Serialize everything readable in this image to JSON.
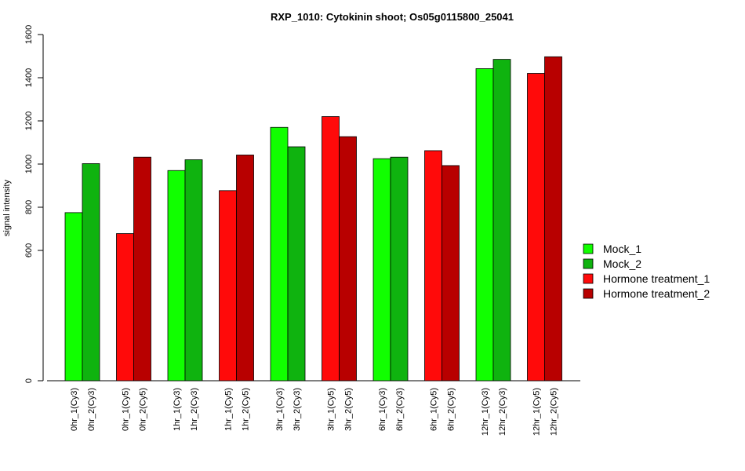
{
  "chart_data": {
    "type": "bar",
    "title": "RXP_1010: Cytokinin shoot; Os05g0115800_25041",
    "ylabel": "signal intensity",
    "xlabel": "",
    "yticks": [
      0,
      600,
      800,
      1000,
      1200,
      1400,
      1600
    ],
    "ylim": [
      0,
      1600
    ],
    "y_scale_note": "broken axis",
    "categories": [
      "0hr_1(Cy3)",
      "0hr_2(Cy3)",
      "0hr_1(Cy5)",
      "0hr_2(Cy5)",
      "1hr_1(Cy3)",
      "1hr_2(Cy3)",
      "1hr_1(Cy5)",
      "1hr_2(Cy5)",
      "3hr_1(Cy3)",
      "3hr_2(Cy3)",
      "3hr_1(Cy5)",
      "3hr_2(Cy5)",
      "6hr_1(Cy3)",
      "6hr_2(Cy3)",
      "6hr_1(Cy5)",
      "6hr_2(Cy5)",
      "12hr_1(Cy3)",
      "12hr_2(Cy3)",
      "12hr_1(Cy5)",
      "12hr_2(Cy5)"
    ],
    "values": [
      775,
      1002,
      678,
      1032,
      970,
      1020,
      877,
      1042,
      1170,
      1080,
      1220,
      1127,
      1025,
      1032,
      1062,
      993,
      1442,
      1485,
      1420,
      1497
    ],
    "bar_series": [
      0,
      1,
      2,
      3,
      0,
      1,
      2,
      3,
      0,
      1,
      2,
      3,
      0,
      1,
      2,
      3,
      0,
      1,
      2,
      3
    ],
    "series": [
      {
        "name": "Mock_1",
        "color": "#11ff00"
      },
      {
        "name": "Mock_2",
        "color": "#0fb30f"
      },
      {
        "name": "Hormone treatment_1",
        "color": "#ff0a0a"
      },
      {
        "name": "Hormone treatment_2",
        "color": "#b80000"
      }
    ],
    "legend_position": "right",
    "grid": false
  }
}
